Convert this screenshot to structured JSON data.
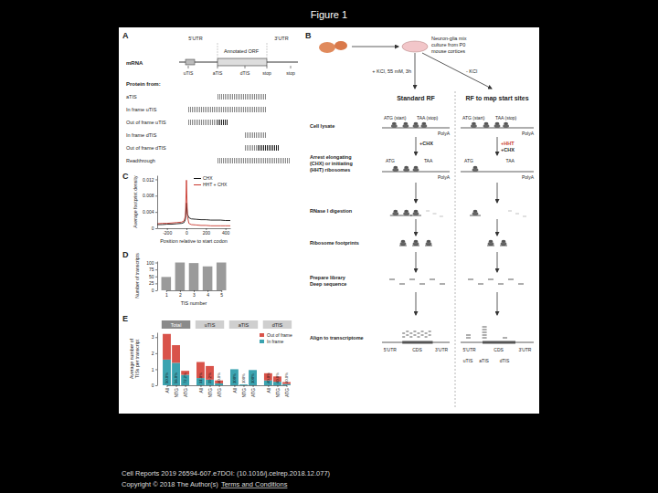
{
  "header": {
    "title": "Figure 1"
  },
  "panel_labels": [
    "A",
    "B",
    "C",
    "D",
    "E"
  ],
  "panel_a": {
    "mrna": "mRNA",
    "regions": [
      "5'UTR",
      "Annotated ORF",
      "3'UTR"
    ],
    "sites": [
      "uTIS",
      "aTIS",
      "dTIS",
      "stop",
      "stop"
    ],
    "protein_header": "Protein from:",
    "proteins": [
      "aTIS",
      "In frame uTIS",
      "Out of frame uTIS",
      "In frame dTIS",
      "Out of frame dTIS",
      "Readthrough"
    ]
  },
  "panel_b": {
    "culture": [
      "Neuron-glia mix",
      "culture from P0",
      "mouse cortices"
    ],
    "conditions": [
      "+ KCl, 55 mM, 3h",
      "- KCl"
    ],
    "columns": [
      "Standard RF",
      "RF to map start sites"
    ],
    "steps": [
      [
        "Cell lysate"
      ],
      [
        "Arrest elongating",
        "(CHX) or initiating",
        "(HHT) ribosomes"
      ],
      [
        "RNase I digestion"
      ],
      [
        "Ribosome footprints"
      ],
      [
        "Prepare library",
        "Deep sequence"
      ],
      [
        "Align to transcriptome"
      ]
    ],
    "lysate_labels": [
      "ATG (start)",
      "TAA (stop)",
      "PolyA"
    ],
    "treatments": [
      [
        "+CHX"
      ],
      [
        "+HHT",
        "+CHX"
      ]
    ],
    "arrest_labels": [
      "ATG",
      "TAA",
      "PolyA"
    ],
    "align_labels": [
      "5'UTR",
      "CDS",
      "3'UTR"
    ],
    "tis_labels": [
      "uTIS",
      "aTIS",
      "dTIS"
    ]
  },
  "chart_data": [
    {
      "type": "line",
      "x_label": "Position relative to start codon",
      "y_label": "Average footprint density",
      "x": [
        -300,
        -250,
        -200,
        -150,
        -100,
        -50,
        -25,
        -10,
        0,
        10,
        25,
        50,
        100,
        150,
        200,
        250,
        300,
        350,
        400,
        450
      ],
      "series": [
        {
          "name": "CHX",
          "color": "#111111",
          "values": [
            0.0009,
            0.0009,
            0.001,
            0.001,
            0.0011,
            0.0012,
            0.0014,
            0.0022,
            0.0062,
            0.0035,
            0.0026,
            0.0023,
            0.0022,
            0.0021,
            0.0021,
            0.002,
            0.002,
            0.002,
            0.0019,
            0.0019
          ]
        },
        {
          "name": "HHT + CHX",
          "color": "#c8372d",
          "values": [
            0.0011,
            0.0012,
            0.0012,
            0.0013,
            0.0014,
            0.0015,
            0.0018,
            0.003,
            0.0118,
            0.003,
            0.0012,
            0.0009,
            0.0008,
            0.0007,
            0.0007,
            0.0006,
            0.0006,
            0.0006,
            0.0006,
            0.0006
          ]
        }
      ],
      "xlim": [
        -300,
        450
      ],
      "xticks": [
        -200,
        0,
        200,
        400
      ],
      "ylim": [
        0,
        0.013
      ],
      "yticks": [
        0,
        0.004,
        0.008,
        0.012
      ],
      "grid": false,
      "legend": "upper right"
    },
    {
      "type": "bar",
      "x_label": "TIS number",
      "y_label": "Number of transcripts",
      "categories": [
        "1",
        "2",
        "3",
        "4",
        "5"
      ],
      "values": [
        48,
        100,
        98,
        86,
        100
      ],
      "color": "#9a9a9a",
      "ylim": [
        0,
        105
      ],
      "yticks": [
        0,
        25,
        50,
        75,
        100
      ],
      "grid": false
    },
    {
      "type": "bar",
      "stacked": true,
      "y_label": [
        "Average number of",
        "TISs per transcript"
      ],
      "group_labels": [
        "Total",
        "uTIS",
        "aTIS",
        "dTIS"
      ],
      "categories": [
        "All",
        "NTG",
        "ATG",
        "All",
        "NTG",
        "ATG",
        "All",
        "NTG",
        "ATG",
        "All",
        "NTG",
        "ATG"
      ],
      "series": [
        {
          "name": "In frame",
          "color": "#3ba3b0",
          "values": [
            1.6,
            1.4,
            0.65,
            0.45,
            0.35,
            0.12,
            1.0,
            0.05,
            0.95,
            0.3,
            0.22,
            0.08
          ]
        },
        {
          "name": "Out of frame",
          "color": "#d9534a",
          "values": [
            1.6,
            1.1,
            0.25,
            1.0,
            0.85,
            0.18,
            0,
            0,
            0,
            0.45,
            0.33,
            0.12
          ]
        }
      ],
      "annotations": [
        "50.0%",
        "56.0%",
        "72.2%",
        "31.0%",
        "29.2%",
        "40.0%",
        "100%",
        "100%",
        "100%",
        "40.0%",
        "40.0%",
        "40.0%"
      ],
      "ylim": [
        0,
        3.3
      ],
      "yticks": [
        0,
        1,
        2,
        3
      ],
      "grid": false,
      "legend": "upper right"
    }
  ],
  "footer": {
    "citation": "Cell Reports 2019 26594-607.e7DOI: (10.1016/j.celrep.2018.12.077)",
    "copyright": "Copyright © 2018 The Author(s)",
    "link": "Terms and Conditions"
  }
}
